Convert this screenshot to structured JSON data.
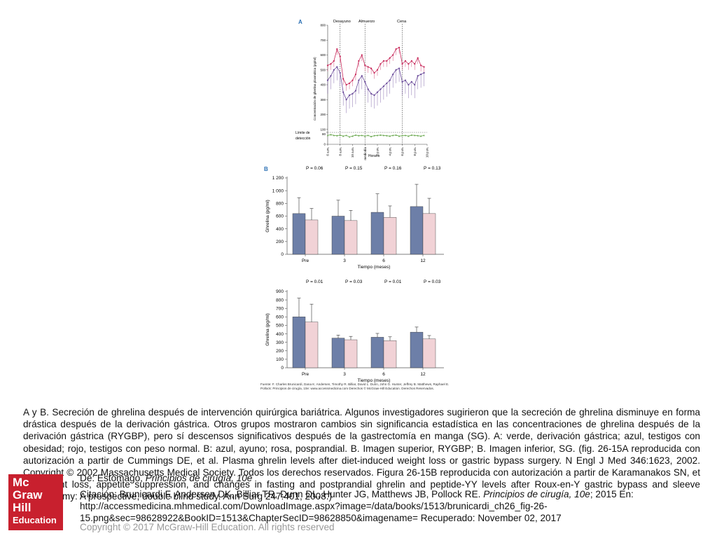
{
  "panel_a": {
    "letter": "A",
    "meal_labels": [
      "Desayuno",
      "Almuerzo",
      "Cena"
    ],
    "yaxis_label": "Concentración de ghrelina plasmática (pg/ml)",
    "yticks": [
      "800",
      "700",
      "600",
      "500",
      "400",
      "300",
      "200",
      "100",
      "80",
      "0"
    ],
    "xticks": [
      "6 a.m.",
      "8 a.m.",
      "10 a.m.",
      "mediodía",
      "2 p.m.",
      "4 p.m.",
      "6 p.m.",
      "8 p.m.",
      "10 p.m."
    ],
    "xlabel": "Horario",
    "detection_label": [
      "Límite de",
      "detección"
    ]
  },
  "panel_b": {
    "letter": "B",
    "top": {
      "pvalues": [
        "P = 0.06",
        "P = 0.15",
        "P = 0.16",
        "P = 0.13"
      ],
      "yticks": [
        "1 200",
        "1 000",
        "800",
        "600",
        "400",
        "200",
        "0"
      ],
      "ylabel": "Ghrelina (pg/ml)",
      "categories": [
        "Pre",
        "3",
        "6",
        "12"
      ],
      "xlabel": "Tiempo (meses)"
    },
    "bottom": {
      "pvalues": [
        "P = 0.01",
        "P = 0.03",
        "P = 0.01",
        "P = 0.03"
      ],
      "yticks": [
        "900",
        "800",
        "700",
        "600",
        "500",
        "400",
        "300",
        "200",
        "100",
        "0"
      ],
      "ylabel": "Ghrelina (pg/ml)",
      "categories": [
        "Pre",
        "3",
        "6",
        "12"
      ],
      "xlabel": "Tiempo (meses)"
    }
  },
  "chart_data": [
    {
      "type": "line",
      "panel": "A",
      "xlabel": "Horario",
      "ylabel": "Concentración de ghrelina plasmática (pg/ml)",
      "ylim": [
        0,
        800
      ],
      "x": [
        6,
        6.5,
        7,
        7.5,
        8,
        8.5,
        9,
        9.5,
        10,
        10.5,
        11,
        11.5,
        12,
        12.5,
        13,
        13.5,
        14,
        14.5,
        15,
        15.5,
        16,
        16.5,
        17,
        17.5,
        18,
        18.5,
        19,
        19.5,
        20,
        20.5,
        21,
        21.5
      ],
      "series": [
        {
          "color": "#c8285a",
          "values": [
            530,
            540,
            560,
            640,
            590,
            440,
            400,
            410,
            430,
            470,
            560,
            600,
            530,
            520,
            510,
            480,
            500,
            540,
            560,
            560,
            580,
            600,
            640,
            650,
            540,
            560,
            540,
            560,
            540,
            580,
            530,
            520
          ]
        },
        {
          "color": "#6a4a9a",
          "values": [
            430,
            460,
            500,
            520,
            480,
            350,
            300,
            330,
            340,
            360,
            430,
            460,
            420,
            370,
            340,
            330,
            350,
            370,
            390,
            410,
            430,
            470,
            500,
            510,
            420,
            430,
            400,
            420,
            400,
            460,
            470,
            480
          ]
        },
        {
          "color": "#6aa84f",
          "values": [
            60,
            65,
            60,
            58,
            62,
            55,
            60,
            50,
            55,
            62,
            58,
            60,
            55,
            60,
            52,
            58,
            60,
            62,
            60,
            58,
            55,
            60,
            62,
            55,
            58,
            60,
            55,
            62,
            60,
            58,
            55,
            60
          ]
        }
      ],
      "annotations": [
        "Desayuno",
        "Almuerzo",
        "Cena",
        "Límite de detección"
      ]
    },
    {
      "type": "bar",
      "panel": "B-top",
      "categories": [
        "Pre",
        "3",
        "6",
        "12"
      ],
      "xlabel": "Tiempo (meses)",
      "ylabel": "Ghrelina (pg/ml)",
      "ylim": [
        0,
        1200
      ],
      "series": [
        {
          "values": [
            640,
            600,
            660,
            750
          ],
          "errors": [
            250,
            250,
            290,
            350
          ],
          "color": "#6d7fa8"
        },
        {
          "values": [
            540,
            530,
            580,
            640
          ],
          "errors": [
            180,
            160,
            180,
            240
          ],
          "color": "#f1d2d6"
        }
      ],
      "pvalues": [
        "P = 0.06",
        "P = 0.15",
        "P = 0.16",
        "P = 0.13"
      ]
    },
    {
      "type": "bar",
      "panel": "B-bottom",
      "categories": [
        "Pre",
        "3",
        "6",
        "12"
      ],
      "xlabel": "Tiempo (meses)",
      "ylabel": "Ghrelina (pg/ml)",
      "ylim": [
        0,
        900
      ],
      "series": [
        {
          "values": [
            600,
            350,
            360,
            420
          ],
          "errors": [
            220,
            35,
            45,
            60
          ],
          "color": "#6d7fa8"
        },
        {
          "values": [
            540,
            330,
            320,
            340
          ],
          "errors": [
            210,
            40,
            45,
            40
          ],
          "color": "#f1d2d6"
        }
      ],
      "pvalues": [
        "P = 0.01",
        "P = 0.03",
        "P = 0.01",
        "P = 0.03"
      ]
    }
  ],
  "source_note": "Fuente: F. Charles Brunicardi, Dana K. Andersen, Timothy R. Billiar, David L. Dunn, John G. Hunter, Jeffrey B. Matthews, Raphael E. Pollock: Principios de cirugía, 10e: www.accessmedicina.com Derechos © McGraw-Hill Education. Derechos Reservados.",
  "caption": " A y B. Secreción de ghrelina después de intervención quirúrgica bariátrica. Algunos investigadores sugirieron que la secreción de ghrelina disminuye en forma drástica después de la derivación gástrica. Otros grupos mostraron cambios sin significancia estadística en las concentraciones de ghrelina después de la derivación gástrica (RYGBP), pero sí descensos significativos después de la gastrectomía en manga (SG). A: verde, derivación gástrica; azul, testigos con obesidad; rojo, testigos con peso normal. B: azul, ayuno; rosa, posprandial. B. Imagen superior, RYGBP; B. Imagen inferior, SG. (fig. 26-15A reproducida con autorización a partir de Cummings DE, et al. Plasma ghrelin levels after diet-induced weight loss or gastric bypass surgery. N Engl J Med 346:1623, 2002. Copyright © 2002 Massachusetts Medical Society. Todos los derechos reservados. Figura 26-15B reproducida con autorización a partir de Karamanakos SN, et al. Weight loss, appetite suppression, and changes in fasting and postprandial ghrelin and peptide-YY levels after Roux-en-Y gastric bypass and sleeve gastrectomy: A prospective, double blind study. Ann Surg 247:401, 2008.)",
  "de_line": {
    "prefix": "De: Estómago, ",
    "book": "Principios de cirugía, 10e"
  },
  "citation": {
    "prefix": "Citación: Brunicardi F, Andersen DK, Billiar TR, Dunn DL, Hunter JG, Matthews JB, Pollock RE. ",
    "book": "Principios de cirugía, 10e",
    "rest": "; 2015 En: http://accessmedicina.mhmedical.com/DownloadImage.aspx?image=/data/books/1513/brunicardi_ch26_fig-26-15.png&sec=98628922&BookID=1513&ChapterSecID=98628850&imagename= Recuperado: November 02, 2017"
  },
  "copyright": "Copyright © 2017 McGraw-Hill Education. All rights reserved",
  "logo": {
    "l1": "Mc",
    "l2": "Graw",
    "l3": "Hill",
    "l4": "Education"
  }
}
